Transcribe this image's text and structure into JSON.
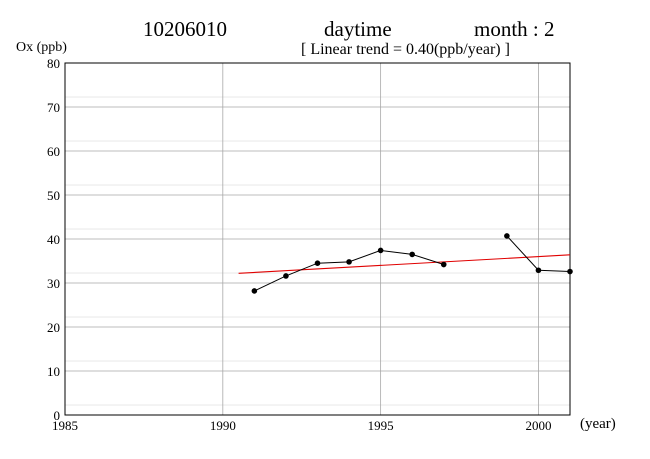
{
  "header": {
    "station": "10206010",
    "period": "daytime",
    "month": "month : 2",
    "trend": "[ Linear trend = 0.40(ppb/year) ]"
  },
  "chart_data": {
    "type": "line",
    "ylabel": "Ox (ppb)",
    "xlabel": "(year)",
    "xlim": [
      1985,
      2001
    ],
    "ylim": [
      0,
      80
    ],
    "x_ticks": [
      1985,
      1990,
      1995,
      2000
    ],
    "y_ticks": [
      0,
      10,
      20,
      30,
      40,
      50,
      60,
      70,
      80
    ],
    "grid": true,
    "series": [
      {
        "color": "#000000",
        "points": [
          {
            "x": 1991,
            "y": 28.2
          },
          {
            "x": 1992,
            "y": 31.6
          },
          {
            "x": 1993,
            "y": 34.5
          },
          {
            "x": 1994,
            "y": 34.8
          },
          {
            "x": 1995,
            "y": 37.4
          },
          {
            "x": 1996,
            "y": 36.5
          },
          {
            "x": 1997,
            "y": 34.2
          },
          {
            "x": 1998,
            "y": null
          },
          {
            "x": 1999,
            "y": 40.7
          },
          {
            "x": 2000,
            "y": 32.9
          },
          {
            "x": 2001,
            "y": 32.6
          }
        ]
      }
    ],
    "trend_line": {
      "color": "#e00000",
      "x": [
        1990.5,
        2001
      ],
      "y": [
        32.2,
        36.4
      ]
    }
  }
}
